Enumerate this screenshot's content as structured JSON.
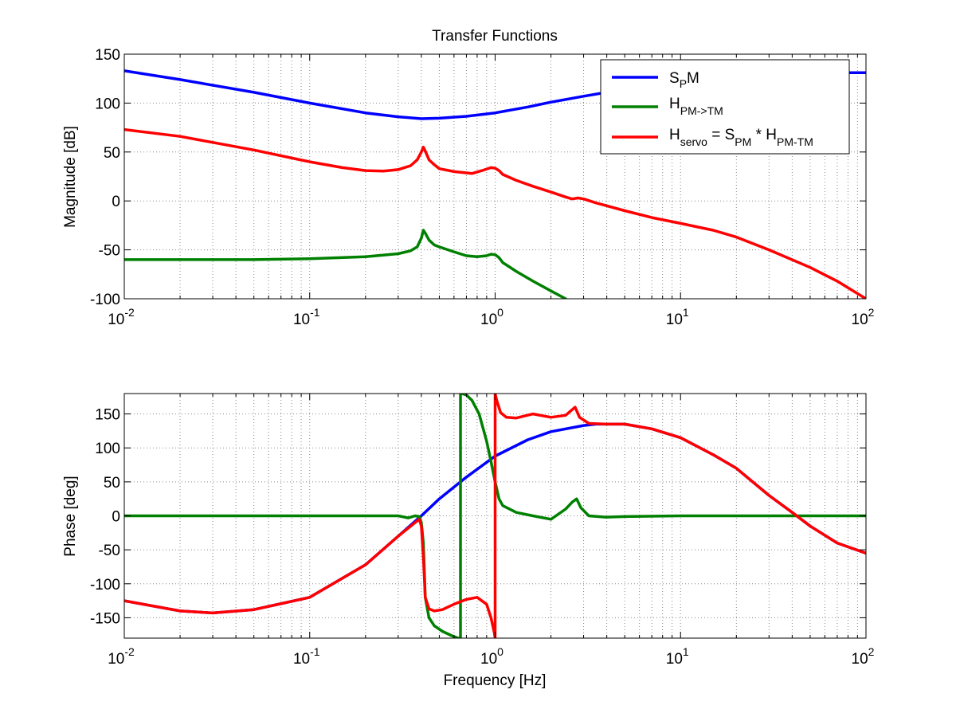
{
  "chart_data": [
    {
      "type": "line",
      "title": "Transfer Functions",
      "xlabel": "",
      "ylabel": "Magnitude [dB]",
      "xscale": "log",
      "xlim": [
        0.01,
        100
      ],
      "ylim": [
        -100,
        150
      ],
      "xticks": [
        0.01,
        0.1,
        1,
        10,
        100
      ],
      "xtick_labels": [
        {
          "base": "10",
          "exp": "-2"
        },
        {
          "base": "10",
          "exp": "-1"
        },
        {
          "base": "10",
          "exp": "0"
        },
        {
          "base": "10",
          "exp": "1"
        },
        {
          "base": "10",
          "exp": "2"
        }
      ],
      "yticks": [
        -100,
        -50,
        0,
        50,
        100,
        150
      ],
      "grid": true,
      "legend_position": "top-right",
      "series": [
        {
          "color": "#0000ff",
          "legend": {
            "base": "S",
            "sub1": "P",
            "tail": "M"
          },
          "x": [
            0.01,
            0.02,
            0.05,
            0.1,
            0.2,
            0.3,
            0.4,
            0.5,
            0.7,
            1,
            1.5,
            2,
            3,
            4,
            5,
            7,
            10,
            20,
            50,
            100
          ],
          "y": [
            133,
            124,
            111,
            100,
            90,
            86,
            84,
            84.5,
            86.5,
            90,
            96,
            101,
            107,
            111,
            114,
            118,
            122,
            127,
            131,
            131
          ]
        },
        {
          "color": "#008000",
          "legend": {
            "base": "H",
            "sub1": "PM->TM",
            "tail": ""
          },
          "x": [
            0.01,
            0.05,
            0.1,
            0.2,
            0.3,
            0.35,
            0.38,
            0.4,
            0.41,
            0.42,
            0.44,
            0.47,
            0.5,
            0.6,
            0.7,
            0.8,
            0.9,
            0.95,
            1.0,
            1.05,
            1.1,
            1.3,
            1.6,
            2.0,
            2.4
          ],
          "y": [
            -60,
            -60,
            -59,
            -57,
            -54,
            -51,
            -47,
            -38,
            -30,
            -33,
            -40,
            -45,
            -47,
            -52,
            -56,
            -57,
            -56,
            -54.5,
            -55,
            -58,
            -63,
            -72,
            -82,
            -92,
            -100
          ]
        },
        {
          "color": "#ff0000",
          "legend": {
            "base": "H",
            "sub1": "servo",
            "mid": " = S",
            "sub2": "PM",
            "mid2": " * H",
            "sub3": "PM-TM"
          },
          "x": [
            0.01,
            0.02,
            0.05,
            0.1,
            0.15,
            0.2,
            0.25,
            0.3,
            0.35,
            0.38,
            0.4,
            0.41,
            0.42,
            0.44,
            0.47,
            0.5,
            0.6,
            0.75,
            0.85,
            0.95,
            1.0,
            1.05,
            1.1,
            1.3,
            1.6,
            2.0,
            2.4,
            2.6,
            2.8,
            3.0,
            3.5,
            5,
            7,
            10,
            15,
            20,
            30,
            50,
            70,
            100
          ],
          "y": [
            73,
            66,
            52,
            40,
            34,
            31,
            30.5,
            32,
            36,
            42,
            50,
            55,
            51,
            42,
            37,
            33,
            30,
            28,
            31,
            34,
            33.5,
            31,
            27,
            21,
            15,
            9,
            4,
            2,
            3,
            2,
            -2,
            -10,
            -17,
            -23,
            -30,
            -37,
            -50,
            -68,
            -82,
            -100
          ]
        }
      ]
    },
    {
      "type": "line",
      "title": "",
      "xlabel": "Frequency [Hz]",
      "ylabel": "Phase [deg]",
      "xscale": "log",
      "xlim": [
        0.01,
        100
      ],
      "ylim": [
        -180,
        180
      ],
      "xticks": [
        0.01,
        0.1,
        1,
        10,
        100
      ],
      "xtick_labels": [
        {
          "base": "10",
          "exp": "-2"
        },
        {
          "base": "10",
          "exp": "-1"
        },
        {
          "base": "10",
          "exp": "0"
        },
        {
          "base": "10",
          "exp": "1"
        },
        {
          "base": "10",
          "exp": "2"
        }
      ],
      "yticks": [
        -150,
        -100,
        -50,
        0,
        50,
        100,
        150
      ],
      "grid": true,
      "series": [
        {
          "color": "#0000ff",
          "x": [
            0.01,
            0.02,
            0.03,
            0.05,
            0.1,
            0.2,
            0.3,
            0.4,
            0.5,
            0.7,
            1,
            1.5,
            2,
            3,
            3.5,
            5,
            7,
            10,
            15,
            20,
            30,
            40,
            50,
            70,
            100
          ],
          "y": [
            -125,
            -140,
            -143,
            -138,
            -120,
            -72,
            -30,
            0,
            25,
            57,
            88,
            112,
            124,
            133,
            135,
            135,
            128,
            115,
            90,
            70,
            30,
            5,
            -15,
            -40,
            -55
          ]
        },
        {
          "color": "#008000",
          "x": [
            0.01,
            0.1,
            0.3,
            0.34,
            0.37,
            0.39,
            0.4,
            0.41,
            0.42,
            0.44,
            0.47,
            0.52,
            0.58,
            0.63,
            0.64,
            0.65,
            0.65,
            0.66,
            0.7,
            0.75,
            0.82,
            0.9,
            0.95,
            1.0,
            1.05,
            1.1,
            1.3,
            1.6,
            2.0,
            2.4,
            2.6,
            2.75,
            2.9,
            3.2,
            4,
            5,
            10,
            100
          ],
          "y": [
            0,
            0,
            0,
            -3,
            0,
            -1,
            -10,
            -40,
            -120,
            -150,
            -162,
            -170,
            -176,
            -180,
            -180,
            -180,
            180,
            180,
            178,
            170,
            150,
            110,
            80,
            50,
            25,
            15,
            5,
            0,
            -5,
            10,
            20,
            25,
            12,
            0,
            -2,
            -1,
            0,
            0
          ]
        },
        {
          "color": "#ff0000",
          "x": [
            0.01,
            0.02,
            0.03,
            0.05,
            0.1,
            0.2,
            0.3,
            0.37,
            0.39,
            0.4,
            0.41,
            0.42,
            0.44,
            0.47,
            0.52,
            0.6,
            0.7,
            0.8,
            0.9,
            0.95,
            0.99,
            1.0,
            1.0,
            1.02,
            1.07,
            1.15,
            1.3,
            1.6,
            2.0,
            2.4,
            2.7,
            2.85,
            3.2,
            4,
            5,
            7,
            10,
            15,
            20,
            30,
            40,
            50,
            70,
            100
          ],
          "y": [
            -125,
            -140,
            -143,
            -138,
            -120,
            -72,
            -30,
            -10,
            -5,
            -15,
            -60,
            -120,
            -137,
            -140,
            -138,
            -130,
            -123,
            -120,
            -130,
            -150,
            -172,
            -180,
            180,
            170,
            152,
            145,
            144,
            150,
            145,
            148,
            160,
            145,
            136,
            135,
            135,
            128,
            115,
            90,
            70,
            30,
            5,
            -15,
            -40,
            -55
          ]
        }
      ]
    }
  ]
}
